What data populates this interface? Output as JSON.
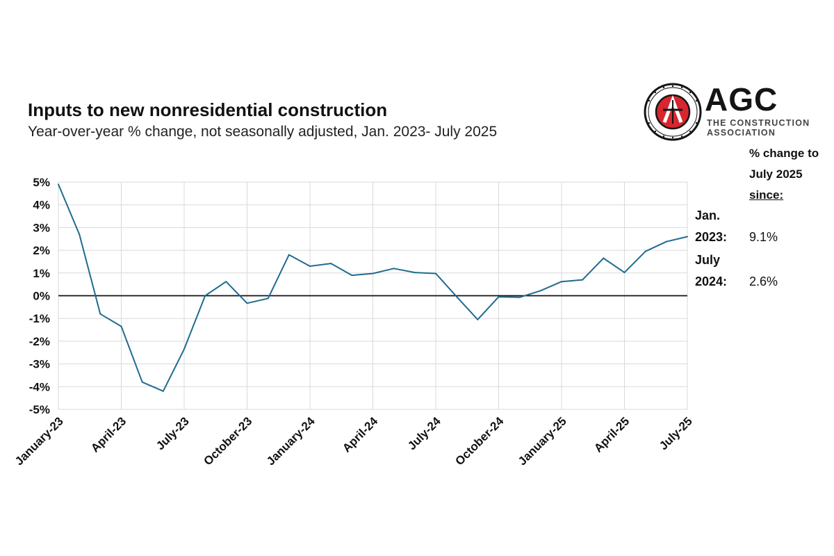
{
  "header": {
    "title": "Inputs to new nonresidential construction",
    "subtitle": "Year-over-year % change, not seasonally adjusted, Jan. 2023- July 2025"
  },
  "logo": {
    "wordmark": "AGC",
    "tagline_line1": "THE CONSTRUCTION",
    "tagline_line2": "ASSOCIATION",
    "seal_text": "ASSOCIATED GENERAL CONTRACTORS OF AMERICA",
    "colors": {
      "red": "#d8262e",
      "dark": "#141414"
    }
  },
  "sidebar": {
    "heading_line1": "% change to",
    "heading_line2": "July 2025",
    "heading_line3": "since:",
    "rows": [
      {
        "label_line1": "Jan.",
        "label_line2": "2023:",
        "value": "9.1%"
      },
      {
        "label_line1": "July",
        "label_line2": "2024:",
        "value": "2.6%"
      }
    ]
  },
  "chart_data": {
    "type": "line",
    "ylim": [
      -5,
      5
    ],
    "y_ticks": [
      "5%",
      "4%",
      "3%",
      "2%",
      "1%",
      "0%",
      "-1%",
      "-2%",
      "-3%",
      "-4%",
      "-5%"
    ],
    "x_tick_labels": [
      "January-23",
      "April-23",
      "July-23",
      "October-23",
      "January-24",
      "April-24",
      "July-24",
      "October-24",
      "January-25",
      "April-25",
      "July-25"
    ],
    "grid": true,
    "zero_line": true,
    "line_color": "#1f6b8f",
    "x": [
      "2023-01",
      "2023-02",
      "2023-03",
      "2023-04",
      "2023-05",
      "2023-06",
      "2023-07",
      "2023-08",
      "2023-09",
      "2023-10",
      "2023-11",
      "2023-12",
      "2024-01",
      "2024-02",
      "2024-03",
      "2024-04",
      "2024-05",
      "2024-06",
      "2024-07",
      "2024-08",
      "2024-09",
      "2024-10",
      "2024-11",
      "2024-12",
      "2025-01",
      "2025-02",
      "2025-03",
      "2025-04",
      "2025-05",
      "2025-06",
      "2025-07"
    ],
    "series": [
      {
        "values": [
          4.9,
          2.7,
          -0.8,
          -1.35,
          -3.8,
          -4.2,
          -2.35,
          0.0,
          0.62,
          -0.33,
          -0.12,
          1.8,
          1.3,
          1.42,
          0.9,
          0.98,
          1.2,
          1.02,
          0.98,
          -0.05,
          -1.05,
          -0.05,
          -0.07,
          0.22,
          0.62,
          0.7,
          1.65,
          1.02,
          1.95,
          2.38,
          2.6
        ]
      }
    ]
  }
}
